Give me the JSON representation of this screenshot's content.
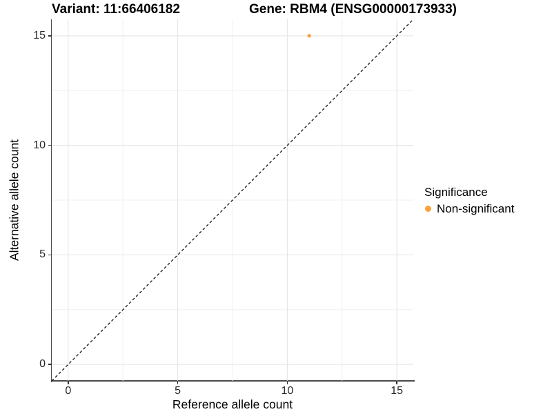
{
  "chart_data": {
    "type": "scatter",
    "title_left": "Variant: 11:66406182",
    "title_right": "Gene: RBM4 (ENSG00000173933)",
    "xlabel": "Reference allele count",
    "ylabel": "Alternative allele count",
    "xlim": [
      -0.75,
      15.75
    ],
    "ylim": [
      -0.75,
      15.75
    ],
    "x_ticks": [
      0,
      5,
      10,
      15
    ],
    "y_ticks": [
      0,
      5,
      10,
      15
    ],
    "x_minor_ticks": [
      2.5,
      7.5,
      12.5
    ],
    "y_minor_ticks": [
      2.5,
      7.5,
      12.5
    ],
    "grid": "major+minor",
    "series": [
      {
        "name": "Non-significant",
        "color": "#F9A23B",
        "points": [
          {
            "x": 11,
            "y": 15
          }
        ]
      }
    ],
    "reference_line": {
      "kind": "identity",
      "slope": 1,
      "intercept": 0,
      "style": "dashed",
      "color": "#000000"
    },
    "legend": {
      "title": "Significance",
      "position": "right",
      "items": [
        {
          "label": "Non-significant",
          "color": "#F9A23B"
        }
      ]
    },
    "theme": {
      "background": "#FFFFFF",
      "grid_major": "#E3E3E3",
      "grid_minor": "#F0F0F0",
      "axis_line": "#4A4A4A",
      "tick_mark": "#333333",
      "tick_label_color": "#262626",
      "point_radius_px": 2.7,
      "legend_point_radius_px": 4.5
    }
  }
}
